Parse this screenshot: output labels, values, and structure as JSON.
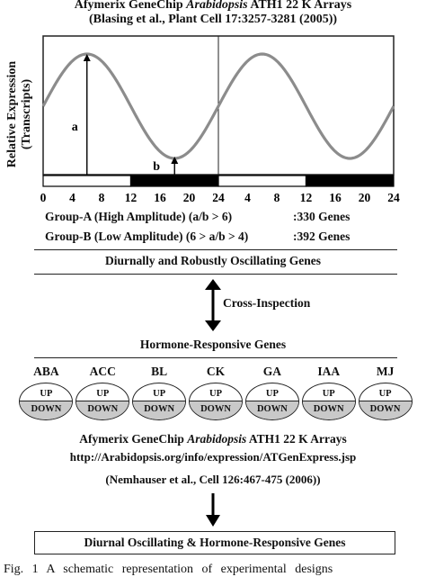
{
  "header": {
    "title_line1_prefix": "Afymerix GeneChip ",
    "title_line1_italic": "Arabidopsis",
    "title_line1_suffix": " ATH1 22 K Arrays",
    "title_line2": "(Blasing et al., Plant Cell 17:3257-3281 (2005))"
  },
  "plot": {
    "y_axis_title_line1": "Relative Expression",
    "y_axis_title_line2": "(Transcripts)",
    "label_a": "a",
    "label_b": "b",
    "x_ticks": [
      "0",
      "4",
      "8",
      "12",
      "16",
      "20",
      "24",
      "4",
      "8",
      "12",
      "16",
      "20",
      "24"
    ]
  },
  "chart_data": {
    "type": "line",
    "title": "",
    "xlabel": "",
    "ylabel": "Relative Expression (Transcripts)",
    "x_tick_labels": [
      "0",
      "4",
      "8",
      "12",
      "16",
      "20",
      "24",
      "4",
      "8",
      "12",
      "16",
      "20",
      "24"
    ],
    "x_range_hours": [
      0,
      48
    ],
    "series": [
      {
        "shape": "sine",
        "period_hours": 24,
        "peak_hours": [
          6,
          30
        ],
        "trough_hours": [
          18,
          42
        ]
      }
    ],
    "light_dark_bar": [
      {
        "from": 0,
        "to": 12,
        "phase": "light"
      },
      {
        "from": 12,
        "to": 24,
        "phase": "dark"
      },
      {
        "from": 24,
        "to": 36,
        "phase": "light"
      },
      {
        "from": 36,
        "to": 48,
        "phase": "dark"
      }
    ],
    "annotations": [
      {
        "label": "a",
        "at_hour": 6,
        "meaning": "peak height"
      },
      {
        "label": "b",
        "at_hour": 18,
        "meaning": "trough height"
      }
    ],
    "grid": false
  },
  "groups": [
    {
      "label": "Group-A (High Amplitude) (a/b > 6)",
      "genes": ":330 Genes"
    },
    {
      "label": "Group-B (Low Amplitude) (6 > a/b > 4)",
      "genes": ":392 Genes"
    }
  ],
  "diurnal_heading": "Diurnally and Robustly Oscillating Genes",
  "cross_inspection_label": "Cross-Inspection",
  "hormone_heading": "Hormone-Responsive Genes",
  "hormones": [
    {
      "name": "ABA",
      "up": "UP",
      "down": "DOWN"
    },
    {
      "name": "ACC",
      "up": "UP",
      "down": "DOWN"
    },
    {
      "name": "BL",
      "up": "UP",
      "down": "DOWN"
    },
    {
      "name": "CK",
      "up": "UP",
      "down": "DOWN"
    },
    {
      "name": "GA",
      "up": "UP",
      "down": "DOWN"
    },
    {
      "name": "IAA",
      "up": "UP",
      "down": "DOWN"
    },
    {
      "name": "MJ",
      "up": "UP",
      "down": "DOWN"
    }
  ],
  "footer": {
    "array_prefix": "Afymerix GeneChip ",
    "array_italic": "Arabidopsis",
    "array_suffix": " ATH1 22 K Arrays",
    "url": "http://Arabidopsis.org/info/expression/ATGenExpress.jsp",
    "citation": "(Nemhauser et al., Cell 126:467-475 (2006))",
    "final_box": "Diurnal Oscillating & Hormone-Responsive Genes",
    "caption": "Fig. 1 A schematic representation of experimental designs"
  }
}
